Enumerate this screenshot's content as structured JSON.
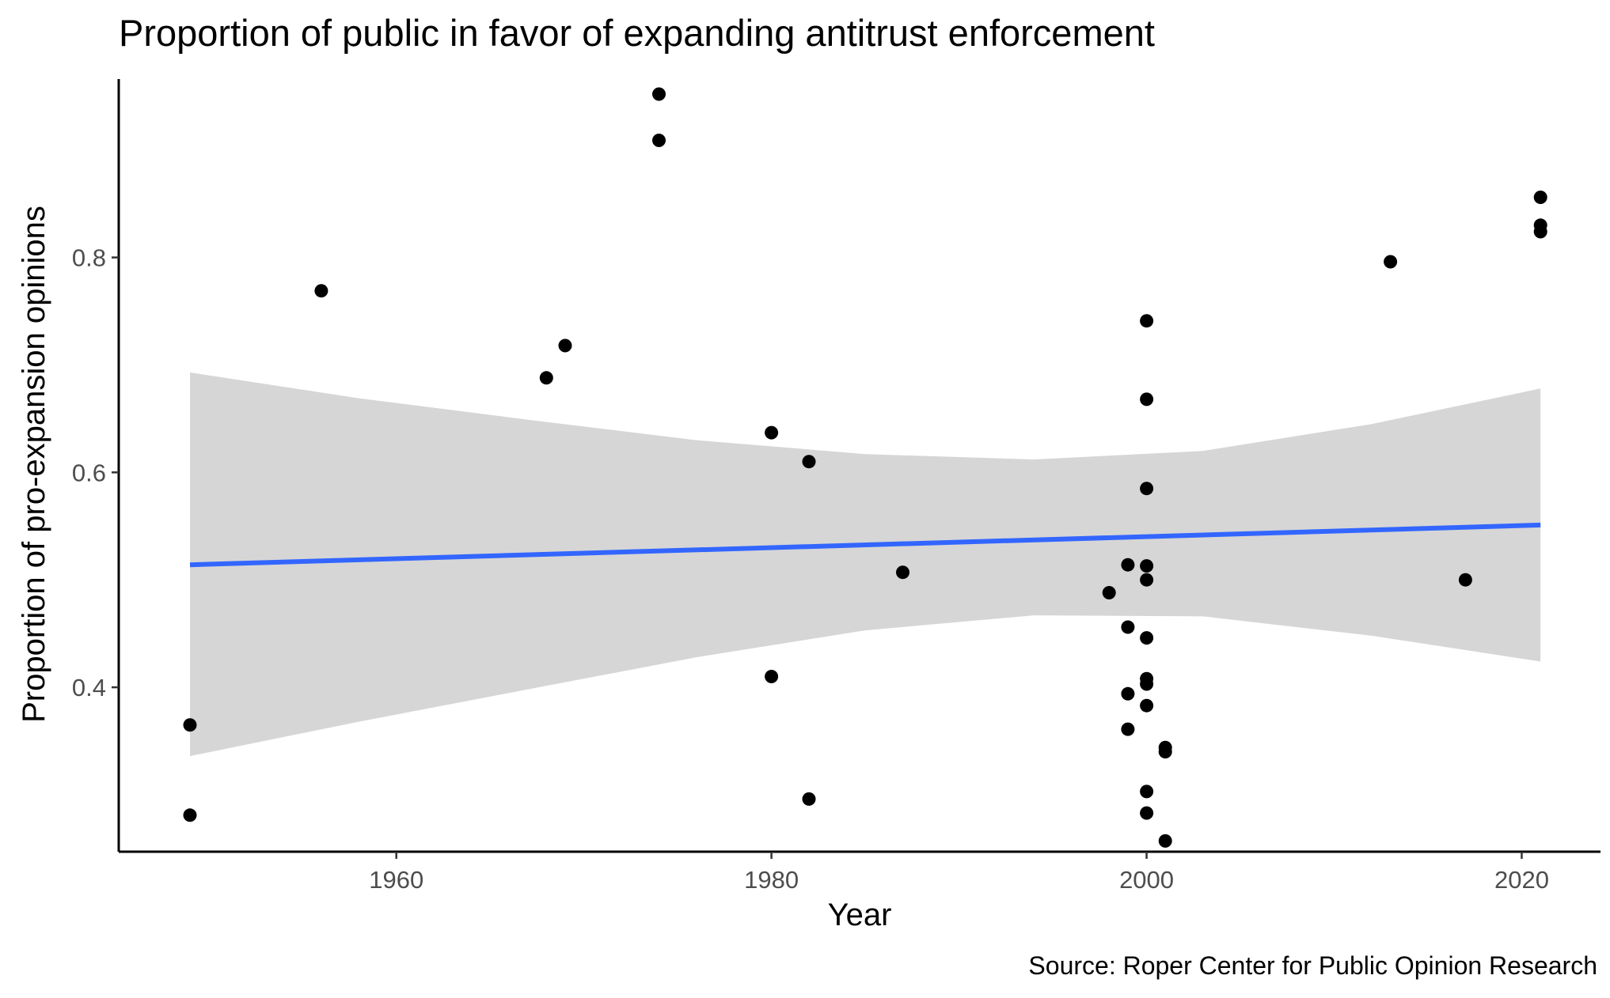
{
  "chart_data": {
    "type": "scatter",
    "title": "Proportion of public in favor of expanding antitrust enforcement",
    "xlabel": "Year",
    "ylabel": "Proportion of pro-expansion opinions",
    "caption": "Source: Roper Center for Public Opinion Research",
    "xlim": [
      1945.2,
      2024.2
    ],
    "ylim": [
      0.247,
      0.966
    ],
    "x_ticks": [
      1960,
      1980,
      2000,
      2020
    ],
    "x_tick_labels": [
      "1960",
      "1980",
      "2000",
      "2020"
    ],
    "y_ticks": [
      0.4,
      0.6,
      0.8
    ],
    "y_tick_labels": [
      "0.4",
      "0.6",
      "0.8"
    ],
    "grid": false,
    "point_color": "#000000",
    "points": [
      {
        "x": 1949,
        "y": 0.365
      },
      {
        "x": 1949,
        "y": 0.281
      },
      {
        "x": 1956,
        "y": 0.769
      },
      {
        "x": 1968,
        "y": 0.688
      },
      {
        "x": 1969,
        "y": 0.718
      },
      {
        "x": 1974,
        "y": 0.952
      },
      {
        "x": 1974,
        "y": 0.909
      },
      {
        "x": 1980,
        "y": 0.637
      },
      {
        "x": 1980,
        "y": 0.41
      },
      {
        "x": 1982,
        "y": 0.61
      },
      {
        "x": 1982,
        "y": 0.296
      },
      {
        "x": 1987,
        "y": 0.507
      },
      {
        "x": 1998,
        "y": 0.488
      },
      {
        "x": 1999,
        "y": 0.514
      },
      {
        "x": 1999,
        "y": 0.456
      },
      {
        "x": 1999,
        "y": 0.394
      },
      {
        "x": 1999,
        "y": 0.361
      },
      {
        "x": 2000,
        "y": 0.741
      },
      {
        "x": 2000,
        "y": 0.668
      },
      {
        "x": 2000,
        "y": 0.585
      },
      {
        "x": 2000,
        "y": 0.513
      },
      {
        "x": 2000,
        "y": 0.5
      },
      {
        "x": 2000,
        "y": 0.446
      },
      {
        "x": 2000,
        "y": 0.408
      },
      {
        "x": 2000,
        "y": 0.403
      },
      {
        "x": 2000,
        "y": 0.383
      },
      {
        "x": 2000,
        "y": 0.303
      },
      {
        "x": 2000,
        "y": 0.283
      },
      {
        "x": 2001,
        "y": 0.344
      },
      {
        "x": 2001,
        "y": 0.34
      },
      {
        "x": 2001,
        "y": 0.257
      },
      {
        "x": 2013,
        "y": 0.796
      },
      {
        "x": 2017,
        "y": 0.5
      },
      {
        "x": 2021,
        "y": 0.856
      },
      {
        "x": 2021,
        "y": 0.83
      },
      {
        "x": 2021,
        "y": 0.824
      }
    ],
    "trend_line": {
      "method": "linear",
      "color": "#3366FF",
      "x": [
        1949,
        2021
      ],
      "y": [
        0.514,
        0.551
      ]
    },
    "confidence_band": {
      "color": "#d6d6d6",
      "x": [
        1949,
        1958,
        1967,
        1976,
        1985,
        1994,
        2003,
        2012,
        2021
      ],
      "lower": [
        0.336,
        0.368,
        0.398,
        0.428,
        0.453,
        0.467,
        0.466,
        0.448,
        0.424
      ],
      "upper": [
        0.693,
        0.669,
        0.649,
        0.63,
        0.617,
        0.612,
        0.62,
        0.645,
        0.678
      ]
    }
  }
}
